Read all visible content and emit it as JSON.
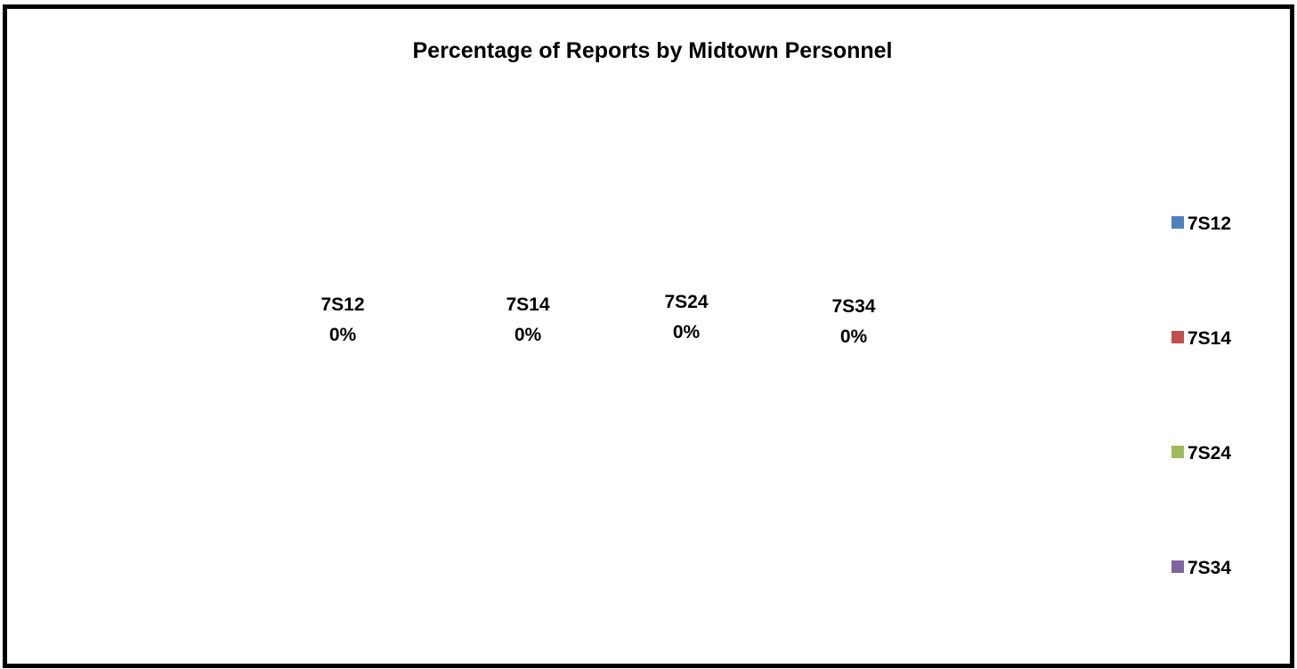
{
  "chart_data": {
    "type": "pie",
    "title": "Percentage of Reports by Midtown Personnel",
    "categories": [
      "7S12",
      "7S14",
      "7S24",
      "7S34"
    ],
    "values": [
      0,
      0,
      0,
      0
    ],
    "value_labels": [
      "0%",
      "0%",
      "0%",
      "0%"
    ],
    "colors": [
      "#4F81BD",
      "#C0504D",
      "#9BBB59",
      "#8064A2"
    ],
    "legend": "right"
  }
}
